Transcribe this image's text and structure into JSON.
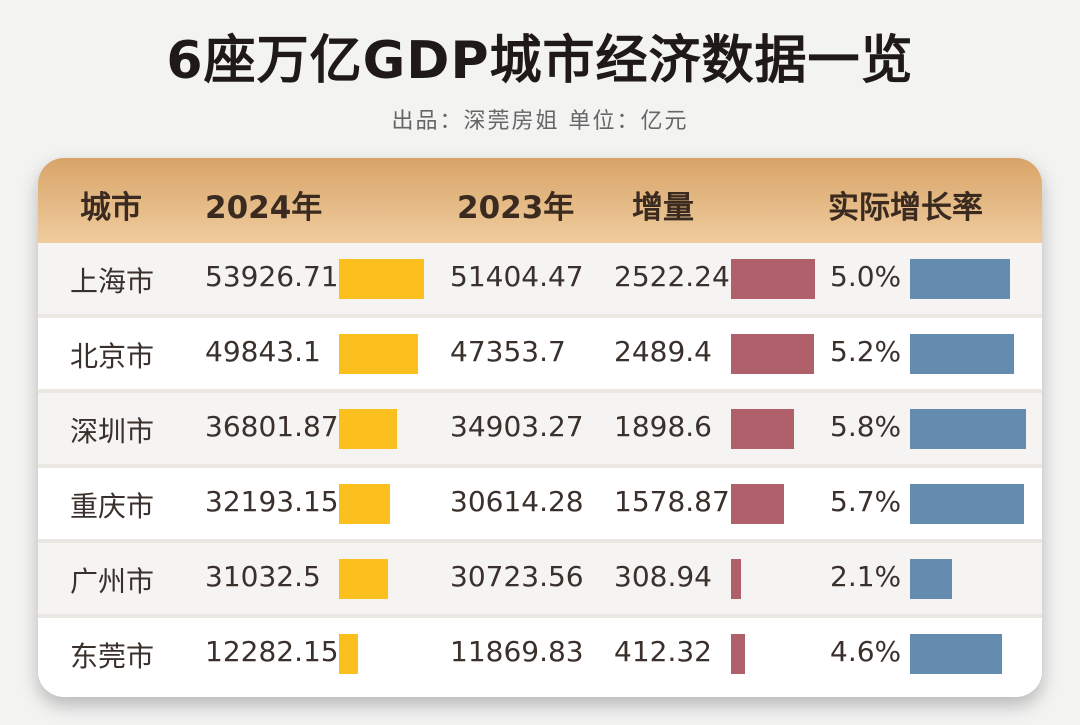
{
  "title": "6座万亿GDP城市经济数据一览",
  "subtitle": "出品：深莞房姐  单位：亿元",
  "colors": {
    "gdp_bar": "#FBBF1E",
    "increment_bar": "#B0606A",
    "rate_bar": "#648CAE",
    "header": "#E2B47C"
  },
  "chart_data": {
    "type": "table",
    "columns": [
      "城市",
      "2024年",
      "2023年",
      "增量",
      "实际增长率"
    ],
    "rows": [
      {
        "city": "上海市",
        "gdp_2024": "53926.71",
        "gdp_2023": "51404.47",
        "increment": "2522.24",
        "rate": "5.0%"
      },
      {
        "city": "北京市",
        "gdp_2024": "49843.1",
        "gdp_2023": "47353.7",
        "increment": "2489.4",
        "rate": "5.2%"
      },
      {
        "city": "深圳市",
        "gdp_2024": "36801.87",
        "gdp_2023": "34903.27",
        "increment": "1898.6",
        "rate": "5.8%"
      },
      {
        "city": "重庆市",
        "gdp_2024": "32193.15",
        "gdp_2023": "30614.28",
        "increment": "1578.87",
        "rate": "5.7%"
      },
      {
        "city": "广州市",
        "gdp_2024": "31032.5",
        "gdp_2023": "30723.56",
        "increment": "308.94",
        "rate": "2.1%"
      },
      {
        "city": "东莞市",
        "gdp_2024": "12282.15",
        "gdp_2023": "11869.83",
        "increment": "412.32",
        "rate": "4.6%"
      }
    ]
  }
}
